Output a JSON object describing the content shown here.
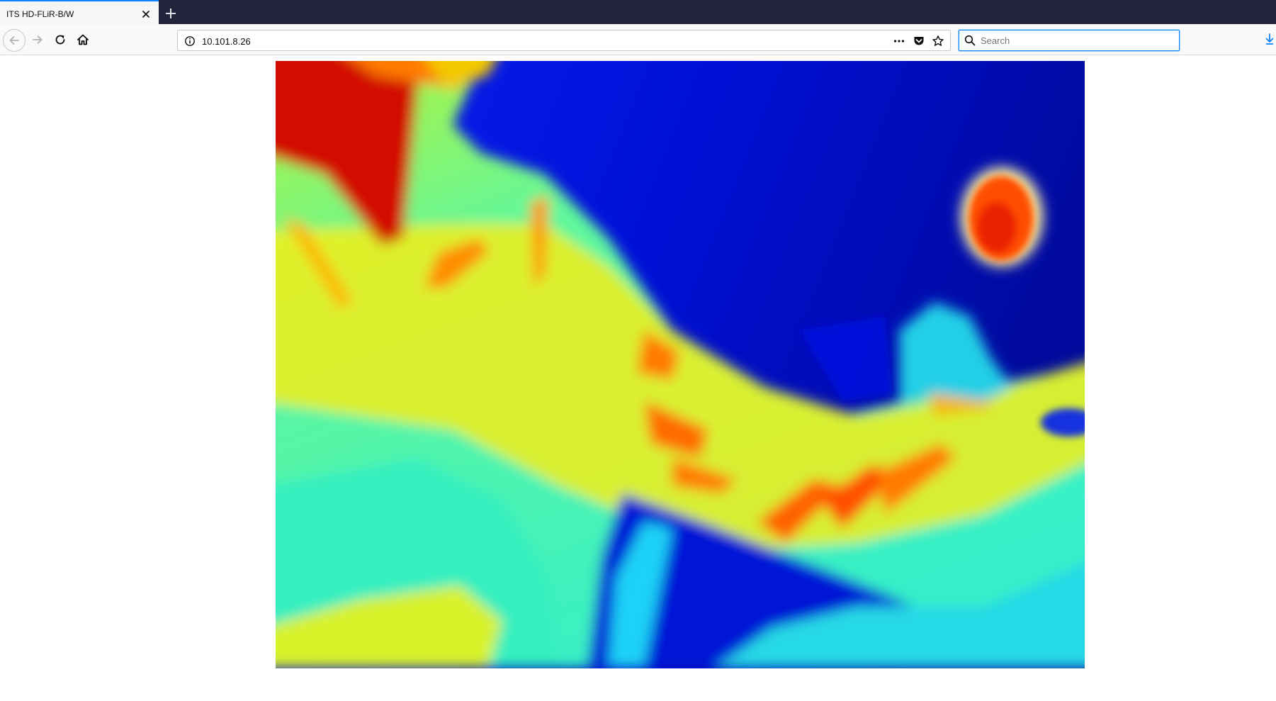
{
  "browser": {
    "tab": {
      "title": "ITS HD-FLiR-B/W"
    },
    "address": {
      "url": "10.101.8.26"
    },
    "search": {
      "placeholder": "Search",
      "value": ""
    }
  },
  "icons": {
    "tab_close": "close-icon",
    "new_tab": "plus-icon",
    "back": "back-arrow-icon",
    "forward": "forward-arrow-icon",
    "reload": "reload-icon",
    "home": "home-icon",
    "site_info": "info-icon",
    "page_actions": "more-icon",
    "pocket": "pocket-icon",
    "bookmark": "star-icon",
    "search": "search-icon",
    "downloads": "download-icon"
  },
  "colors": {
    "tabstrip": "#22243b",
    "accent": "#0a84ff",
    "thermal_cold": "#0009d8",
    "thermal_warm": "#f2ee1a",
    "thermal_hot": "#d70f00"
  }
}
